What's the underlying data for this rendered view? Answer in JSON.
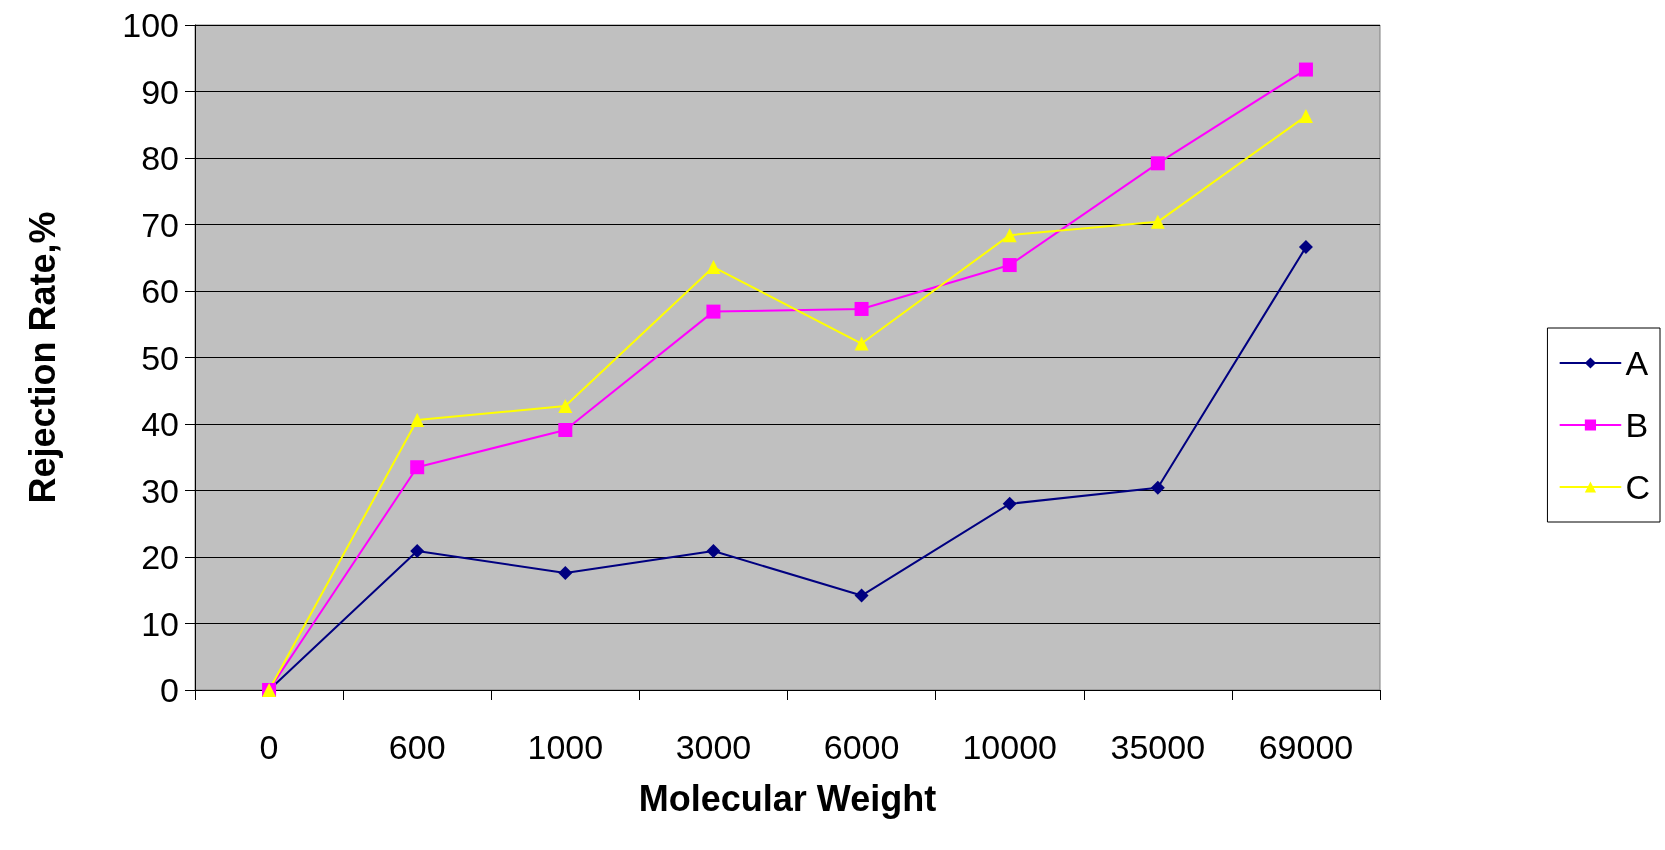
{
  "chart_data": {
    "type": "line",
    "xlabel": "Molecular Weight",
    "ylabel": "Rejection Rate,%",
    "categories": [
      "0",
      "600",
      "1000",
      "3000",
      "6000",
      "10000",
      "35000",
      "69000"
    ],
    "ylim": [
      0,
      100
    ],
    "yticks": [
      0,
      10,
      20,
      30,
      40,
      50,
      60,
      70,
      80,
      90,
      100
    ],
    "grid": "y",
    "legend": "right",
    "line_style": "solid",
    "series": [
      {
        "name": "A",
        "color": "#000080",
        "marker": "diamond",
        "values": [
          0,
          20.9,
          17.6,
          20.9,
          14.2,
          28,
          30.4,
          66.6
        ]
      },
      {
        "name": "B",
        "color": "#ff00ff",
        "marker": "square",
        "values": [
          0,
          33.5,
          39.1,
          56.9,
          57.3,
          63.9,
          79.2,
          93.3
        ]
      },
      {
        "name": "C",
        "color": "#ffff00",
        "marker": "triangle",
        "values": [
          0,
          40.6,
          42.7,
          63.6,
          52.1,
          68.4,
          70.4,
          86.3
        ]
      }
    ]
  }
}
